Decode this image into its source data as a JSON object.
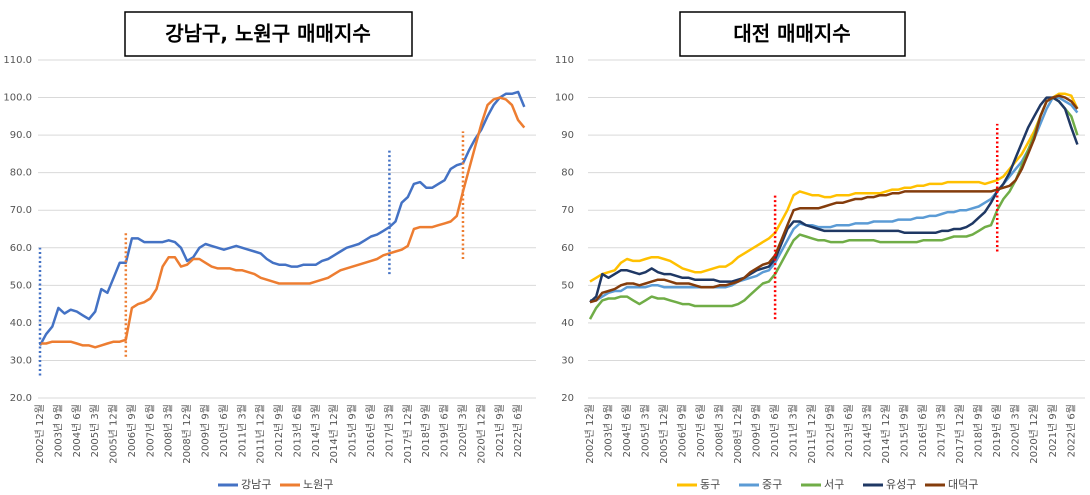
{
  "chart_data": [
    {
      "type": "line",
      "title": "강남구, 노원구 매매지수",
      "categories": [
        "2002년 12월",
        null,
        null,
        "2003년 9월",
        null,
        null,
        "2004년 6월",
        null,
        null,
        "2005년 3월",
        null,
        null,
        "2005년 12월",
        null,
        null,
        "2006년 9월",
        null,
        null,
        "2007년 6월",
        null,
        null,
        "2008년 3월",
        null,
        null,
        "2008년 12월",
        null,
        null,
        "2009년 9월",
        null,
        null,
        "2010년 6월",
        null,
        null,
        "2011년 3월",
        null,
        null,
        "2011년 12월",
        null,
        null,
        "2012년 9월",
        null,
        null,
        "2013년 6월",
        null,
        null,
        "2014년 3월",
        null,
        null,
        "2014년 12월",
        null,
        null,
        "2015년 9월",
        null,
        null,
        "2016년 6월",
        null,
        null,
        "2017년 3월",
        null,
        null,
        "2017년 12월",
        null,
        null,
        "2018년 9월",
        null,
        null,
        "2019년 6월",
        null,
        null,
        "2020년 3월",
        null,
        null,
        "2020년 12월",
        null,
        null,
        "2021년 9월",
        null,
        null,
        "2022년 6월",
        null
      ],
      "ylim": [
        20,
        110
      ],
      "yticks": [
        {
          "value": 20,
          "label": "20.0"
        },
        {
          "value": 30,
          "label": "30.0"
        },
        {
          "value": 40,
          "label": "40.0"
        },
        {
          "value": 50,
          "label": "50.0"
        },
        {
          "value": 60,
          "label": "60.0"
        },
        {
          "value": 70,
          "label": "70.0"
        },
        {
          "value": 80,
          "label": "80.0"
        },
        {
          "value": 90,
          "label": "90.0"
        },
        {
          "value": 100,
          "label": "100.0"
        },
        {
          "value": 110,
          "label": "110.0"
        }
      ],
      "grid": true,
      "legend": "bottom",
      "series": [
        {
          "name": "강남구",
          "color": "#4472c4",
          "values": [
            34,
            37,
            39,
            44,
            42.5,
            43.5,
            43,
            42,
            41,
            43,
            49,
            48,
            52,
            56,
            56,
            62.5,
            62.5,
            61.5,
            61.5,
            61.5,
            61.5,
            62,
            61.5,
            60,
            56.5,
            57.5,
            60,
            61,
            60.5,
            60,
            59.5,
            60,
            60.5,
            60,
            59.5,
            59,
            58.5,
            57,
            56,
            55.5,
            55.5,
            55,
            55,
            55.5,
            55.5,
            55.5,
            56.5,
            57,
            58,
            59,
            60,
            60.5,
            61,
            62,
            63,
            63.5,
            64.5,
            65.5,
            67,
            72,
            73.5,
            77,
            77.5,
            76,
            76,
            77,
            78,
            81,
            82,
            82.5,
            86,
            89,
            91.5,
            95,
            98,
            100,
            101,
            101,
            101.5,
            97.5
          ]
        },
        {
          "name": "노원구",
          "color": "#ed7d31",
          "values": [
            34.5,
            34.5,
            35,
            35,
            35,
            35,
            34.5,
            34,
            34,
            33.5,
            34,
            34.5,
            35,
            35,
            35.5,
            44,
            45,
            45.5,
            46.5,
            49,
            55,
            57.5,
            57.5,
            55,
            55.5,
            57,
            57,
            56,
            55,
            54.5,
            54.5,
            54.5,
            54,
            54,
            53.5,
            53,
            52,
            51.5,
            51,
            50.5,
            50.5,
            50.5,
            50.5,
            50.5,
            50.5,
            51,
            51.5,
            52,
            53,
            54,
            54.5,
            55,
            55.5,
            56,
            56.5,
            57,
            58,
            58.5,
            59,
            59.5,
            60.5,
            65,
            65.5,
            65.5,
            65.5,
            66,
            66.5,
            67,
            68.5,
            75,
            81,
            87,
            93,
            98,
            99.5,
            100,
            99.5,
            98,
            94,
            92
          ]
        }
      ],
      "reference_lines": [
        {
          "x": 0,
          "from": 26,
          "to": 60,
          "color": "#4472c4"
        },
        {
          "x": 14,
          "from": 31,
          "to": 64,
          "color": "#ed7d31"
        },
        {
          "x": 57,
          "from": 53,
          "to": 86,
          "color": "#4472c4"
        },
        {
          "x": 69,
          "from": 57,
          "to": 91,
          "color": "#ed7d31"
        }
      ]
    },
    {
      "type": "line",
      "title": "대전 매매지수",
      "categories": [
        "2002년 12월",
        null,
        null,
        "2003년 9월",
        null,
        null,
        "2004년 6월",
        null,
        null,
        "2005년 3월",
        null,
        null,
        "2005년 12월",
        null,
        null,
        "2006년 9월",
        null,
        null,
        "2007년 6월",
        null,
        null,
        "2008년 3월",
        null,
        null,
        "2008년 12월",
        null,
        null,
        "2009년 9월",
        null,
        null,
        "2010년 6월",
        null,
        null,
        "2011년 3월",
        null,
        null,
        "2011년 12월",
        null,
        null,
        "2012년 9월",
        null,
        null,
        "2013년 6월",
        null,
        null,
        "2014년 3월",
        null,
        null,
        "2014년 12월",
        null,
        null,
        "2015년 9월",
        null,
        null,
        "2016년 6월",
        null,
        null,
        "2017년 3월",
        null,
        null,
        "2017년 12월",
        null,
        null,
        "2018년 9월",
        null,
        null,
        "2019년 6월",
        null,
        null,
        "2020년 3월",
        null,
        null,
        "2020년 12월",
        null,
        null,
        "2021년 9월",
        null,
        null,
        "2022년 6월",
        null
      ],
      "ylim": [
        20,
        110
      ],
      "yticks": [
        20,
        30,
        40,
        50,
        60,
        70,
        80,
        90,
        100,
        110
      ],
      "grid": true,
      "legend": "bottom",
      "series": [
        {
          "name": "동구",
          "color": "#ffc000",
          "values": [
            51,
            52,
            53,
            53.5,
            54,
            56,
            57,
            56.5,
            56.5,
            57,
            57.5,
            57.5,
            57,
            56.5,
            55.5,
            54.5,
            54,
            53.5,
            53.5,
            54,
            54.5,
            55,
            55,
            56,
            57.5,
            58.5,
            59.5,
            60.5,
            61.5,
            62.5,
            64,
            67,
            70,
            74,
            75,
            74.5,
            74,
            74,
            73.5,
            73.5,
            74,
            74,
            74,
            74.5,
            74.5,
            74.5,
            74.5,
            74.5,
            75,
            75.5,
            75.5,
            76,
            76,
            76.5,
            76.5,
            77,
            77,
            77,
            77.5,
            77.5,
            77.5,
            77.5,
            77.5,
            77.5,
            77,
            77.5,
            78,
            79,
            81,
            83,
            85,
            88,
            91,
            95,
            99,
            100,
            101,
            101,
            100.5,
            97
          ]
        },
        {
          "name": "중구",
          "color": "#5b9bd5",
          "values": [
            46,
            46,
            47,
            48,
            48.5,
            48.5,
            49.5,
            49.5,
            49.5,
            49.5,
            50,
            50,
            49.5,
            49.5,
            49.5,
            49.5,
            49.5,
            49.5,
            49.5,
            49.5,
            49.5,
            49.5,
            49.5,
            50,
            51,
            51.5,
            52,
            52.5,
            53.5,
            54,
            56,
            59,
            62,
            65,
            66.5,
            66,
            66,
            65.5,
            65.5,
            65.5,
            66,
            66,
            66,
            66.5,
            66.5,
            66.5,
            67,
            67,
            67,
            67,
            67.5,
            67.5,
            67.5,
            68,
            68,
            68.5,
            68.5,
            69,
            69.5,
            69.5,
            70,
            70,
            70.5,
            71,
            72,
            73,
            75,
            77,
            79,
            81,
            83,
            86,
            89,
            93,
            97,
            100,
            100,
            99,
            98,
            96
          ]
        },
        {
          "name": "서구",
          "color": "#70ad47",
          "values": [
            41,
            44,
            46,
            46.5,
            46.5,
            47,
            47,
            46,
            45,
            46,
            47,
            46.5,
            46.5,
            46,
            45.5,
            45,
            45,
            44.5,
            44.5,
            44.5,
            44.5,
            44.5,
            44.5,
            44.5,
            45,
            46,
            47.5,
            49,
            50.5,
            51,
            53,
            56,
            59,
            62,
            63.5,
            63,
            62.5,
            62,
            62,
            61.5,
            61.5,
            61.5,
            62,
            62,
            62,
            62,
            62,
            61.5,
            61.5,
            61.5,
            61.5,
            61.5,
            61.5,
            61.5,
            62,
            62,
            62,
            62,
            62.5,
            63,
            63,
            63,
            63.5,
            64.5,
            65.5,
            66,
            70,
            73,
            75,
            78,
            82,
            86,
            90,
            95,
            99,
            100,
            99,
            97,
            95,
            90
          ]
        },
        {
          "name": "유성구",
          "color": "#1f3864",
          "values": [
            45.5,
            47,
            53,
            52,
            53,
            54,
            54,
            53.5,
            53,
            53.5,
            54.5,
            53.5,
            53,
            53,
            52.5,
            52,
            52,
            51.5,
            51.5,
            51.5,
            51.5,
            51,
            51,
            51,
            51.5,
            52,
            53,
            54,
            54.5,
            55,
            57,
            61,
            65,
            67,
            67,
            66,
            65.5,
            65,
            64.5,
            64.5,
            64.5,
            64.5,
            64.5,
            64.5,
            64.5,
            64.5,
            64.5,
            64.5,
            64.5,
            64.5,
            64.5,
            64,
            64,
            64,
            64,
            64,
            64,
            64.5,
            64.5,
            65,
            65,
            65.5,
            66.5,
            68,
            69.5,
            72,
            75,
            77,
            80,
            84,
            88,
            92,
            95,
            98,
            100,
            100,
            99,
            97,
            92,
            87.5
          ]
        },
        {
          "name": "대덕구",
          "color": "#843c0c",
          "values": [
            45.5,
            46,
            48,
            48.5,
            49,
            50,
            50.5,
            50.5,
            50,
            50.5,
            51,
            51.5,
            51.5,
            51,
            50.5,
            50.5,
            50.5,
            50,
            49.5,
            49.5,
            49.5,
            50,
            50,
            50.5,
            51,
            52,
            53.5,
            54.5,
            55.5,
            56,
            58,
            62,
            66,
            70,
            70.5,
            70.5,
            70.5,
            70.5,
            71,
            71.5,
            72,
            72,
            72.5,
            73,
            73,
            73.5,
            73.5,
            74,
            74,
            74.5,
            74.5,
            75,
            75,
            75,
            75,
            75,
            75,
            75,
            75,
            75,
            75,
            75,
            75,
            75,
            75,
            75,
            75.5,
            76,
            76.5,
            78,
            81,
            85,
            89,
            95,
            99,
            100,
            100.5,
            100,
            99,
            97
          ]
        }
      ],
      "reference_lines": [
        {
          "x": 30,
          "from": 41,
          "to": 74,
          "color": "#ff0000"
        },
        {
          "x": 66,
          "from": 59,
          "to": 93,
          "color": "#ff0000"
        }
      ]
    }
  ]
}
